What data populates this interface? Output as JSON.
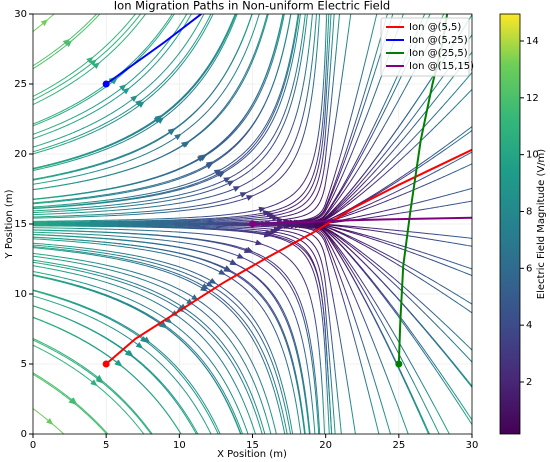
{
  "chart_data": {
    "type": "line",
    "title": "Ion Migration Paths in Non-uniform Electric Field",
    "x_label": "X Position (m)",
    "y_label": "Y Position (m)",
    "xlim": [
      0,
      30
    ],
    "ylim": [
      0,
      30
    ],
    "xticks": [
      0,
      5,
      10,
      15,
      20,
      25,
      30
    ],
    "yticks": [
      0,
      5,
      10,
      15,
      20,
      25,
      30
    ],
    "grid": true,
    "legend": "upper right",
    "series": [
      {
        "name": "Ion @(5,5)",
        "color": "#ff0000",
        "x": [
          5,
          7,
          10,
          13,
          16,
          19,
          22,
          25,
          28,
          30
        ],
        "y": [
          5,
          6.8,
          8.8,
          10.8,
          12.6,
          14.3,
          16.2,
          17.8,
          19.3,
          20.3
        ]
      },
      {
        "name": "Ion @(5,25)",
        "color": "#0000ff",
        "x": [
          5,
          7,
          9,
          11.5
        ],
        "y": [
          25,
          26.5,
          28,
          30
        ]
      },
      {
        "name": "Ion @(25,5)",
        "color": "#008000",
        "x": [
          25,
          25.1,
          25.3,
          25.8,
          26.5,
          27.3,
          28,
          28.3
        ],
        "y": [
          5,
          8,
          12,
          16,
          21,
          25,
          28,
          30
        ]
      },
      {
        "name": "Ion @(15,15)",
        "color": "#800080",
        "x": [
          15,
          18,
          21,
          25,
          30
        ],
        "y": [
          15,
          15.1,
          15.25,
          15.35,
          15.45
        ]
      }
    ],
    "colorbar": {
      "label": "Electric Field Magnitude (V/m)",
      "clim": [
        0.17,
        14.95
      ],
      "ticks": [
        2,
        4,
        6,
        8,
        10,
        12,
        14
      ]
    }
  }
}
